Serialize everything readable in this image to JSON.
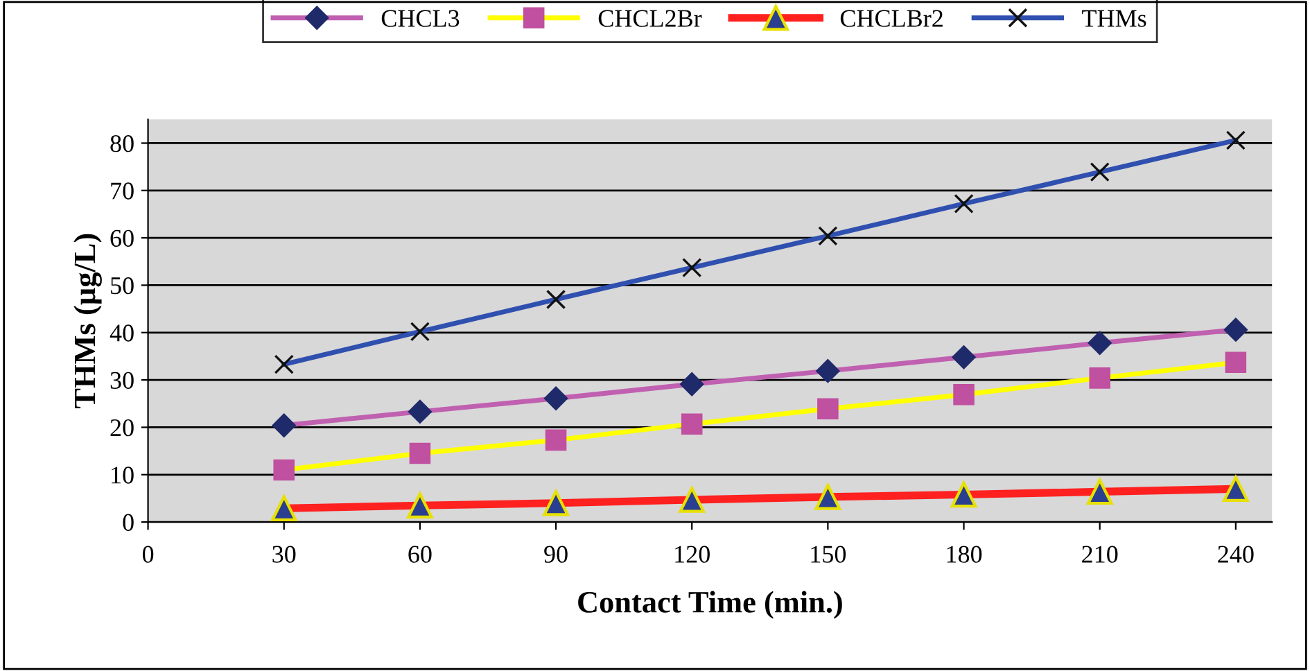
{
  "chart_data": {
    "type": "line",
    "xlabel": "Contact Time (min.)",
    "ylabel": "THMs (µg/L)",
    "x": [
      30,
      60,
      90,
      120,
      150,
      180,
      210,
      240
    ],
    "xlim": [
      0,
      248
    ],
    "xticks": [
      0,
      30,
      60,
      90,
      120,
      150,
      180,
      210,
      240
    ],
    "ylim": [
      0,
      85
    ],
    "yticks": [
      0,
      10,
      20,
      30,
      40,
      50,
      60,
      70,
      80
    ],
    "grid": "y",
    "legend": "top",
    "line_style": "solid",
    "series": [
      {
        "name": "CHCL3",
        "color": "#c060b0",
        "marker": "diamond",
        "values": [
          20.4,
          23.3,
          26.1,
          29.1,
          31.9,
          34.8,
          37.8,
          40.6
        ]
      },
      {
        "name": "CHCL2Br",
        "color": "#ffff00",
        "marker": "square",
        "values": [
          11.0,
          14.5,
          17.3,
          20.7,
          23.9,
          26.9,
          30.4,
          33.7
        ]
      },
      {
        "name": "CHCLBr2",
        "color": "#ff2020",
        "marker": "triangle",
        "values": [
          2.9,
          3.5,
          4.0,
          4.7,
          5.3,
          5.8,
          6.4,
          7.0
        ]
      },
      {
        "name": "THMs",
        "color": "#3050b0",
        "marker": "cross",
        "values": [
          33.3,
          40.2,
          47.0,
          53.7,
          60.4,
          67.2,
          73.9,
          80.6
        ]
      }
    ]
  }
}
